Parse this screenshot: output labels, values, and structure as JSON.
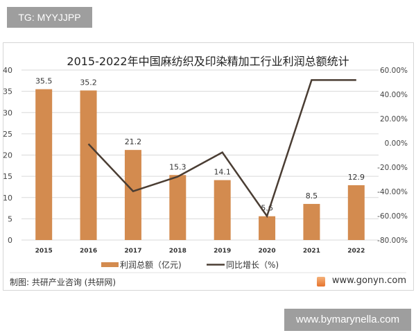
{
  "tag": "TG: MYYJJPP",
  "watermark": "www.bymarynella.com",
  "footer": {
    "source": "制图: 共研产业咨询 (共研网)",
    "site": "www.gonyn.com"
  },
  "colors": {
    "bar": "#d38b4f",
    "line": "#4a3d33",
    "grid": "#d9d9d9"
  },
  "chart_data": {
    "type": "bar+line",
    "title": "2015-2022年中国麻纺织及印染精加工行业利润总额统计",
    "categories": [
      "2015",
      "2016",
      "2017",
      "2018",
      "2019",
      "2020",
      "2021",
      "2022"
    ],
    "series": [
      {
        "name": "利润总额（亿元)",
        "type": "bar",
        "axis": "left",
        "values": [
          35.5,
          35.2,
          21.2,
          15.3,
          14.1,
          5.6,
          8.5,
          12.9
        ],
        "labels": [
          "35.5",
          "35.2",
          "21.2",
          "15.3",
          "14.1",
          "5.6",
          "8.5",
          "12.9"
        ]
      },
      {
        "name": "同比增长（%)",
        "type": "line",
        "axis": "right",
        "values": [
          null,
          -0.85,
          -39.8,
          -27.8,
          -7.8,
          -60.3,
          51.8,
          51.8
        ]
      }
    ],
    "y_left": {
      "range": [
        0,
        40
      ],
      "ticks": [
        "0",
        "5",
        "10",
        "15",
        "20",
        "25",
        "30",
        "35",
        "40"
      ]
    },
    "y_right": {
      "range": [
        -80,
        60
      ],
      "ticks": [
        "-80.00%",
        "-60.00%",
        "-40.00%",
        "-20.00%",
        "0.00%",
        "20.00%",
        "40.00%",
        "60.00%"
      ]
    },
    "grid": true,
    "legend": "bottom"
  }
}
